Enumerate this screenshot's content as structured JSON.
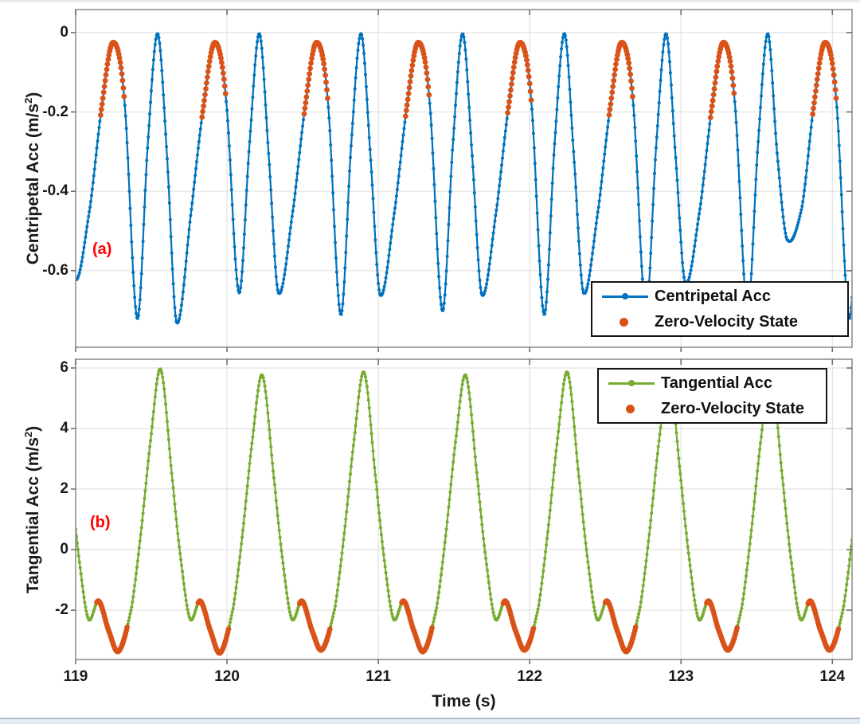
{
  "figure": {
    "background": "#ffffff",
    "axis_border_color": "#909090",
    "tick_color": "#6f6f6f",
    "grid_color": "#e2e2e2",
    "text_color": "#1a1a1a",
    "annotation_color": "#ff0000"
  },
  "xlabel": "Time (s)",
  "chart_data": [
    {
      "id": "centripetal",
      "type": "line",
      "annotation": "(a)",
      "ylabel": {
        "prefix": "Centripetal Acc (m/s",
        "sup": "2",
        "suffix": ")"
      },
      "xlim": [
        119,
        124.13
      ],
      "ylim": [
        -0.793,
        0.058
      ],
      "xticks": [
        119,
        120,
        121,
        122,
        123,
        124
      ],
      "xtick_labels": [
        "119",
        "120",
        "121",
        "122",
        "123",
        "124"
      ],
      "show_xtick_labels": false,
      "yticks": [
        0,
        -0.2,
        -0.4,
        -0.6
      ],
      "ytick_labels": [
        "0",
        "-0.2",
        "-0.4",
        "-0.6"
      ],
      "grid": true,
      "series": {
        "name": "Centripetal Acc",
        "color": "#0072bd",
        "line_width": 2.2,
        "marker": "dot",
        "marker_radius": 2,
        "sample_interval_s": 0.005,
        "anchor_offsets_s": [
          0,
          0.075,
          0.16,
          0.23,
          0.295,
          0.355,
          0.42,
          0.52,
          0.6
        ],
        "anchor_base_values": [
          -0.025,
          -0.17,
          "m1",
          -0.28,
          -0.003,
          -0.3,
          "m2",
          -0.44,
          -0.18
        ],
        "cycles": [
          {
            "tc": 118.575,
            "m1": -0.7,
            "m2": -0.62
          },
          {
            "tc": 119.247,
            "m1": -0.72,
            "m2": -0.73
          },
          {
            "tc": 119.919,
            "m1": -0.655,
            "m2": -0.655
          },
          {
            "tc": 120.591,
            "m1": -0.71,
            "m2": -0.66
          },
          {
            "tc": 121.263,
            "m1": -0.7,
            "m2": -0.66
          },
          {
            "tc": 121.935,
            "m1": -0.71,
            "m2": -0.655
          },
          {
            "tc": 122.607,
            "m1": -0.7,
            "m2": -0.63
          },
          {
            "tc": 123.279,
            "m1": -0.7,
            "m2": -0.52
          },
          {
            "tc": 123.951,
            "m1": -0.72,
            "m2": -0.7
          }
        ]
      },
      "zero_velocity": {
        "name": "Zero-Velocity State",
        "color": "#d95319",
        "marker_radius": 3.4,
        "rel_start": -0.085,
        "rel_end": 0.075
      },
      "legend": {
        "position": "southeast",
        "entries": [
          {
            "label": "Centripetal Acc",
            "marker": "line-dot",
            "color": "#0072bd"
          },
          {
            "label": "Zero-Velocity State",
            "marker": "dot",
            "color": "#d95319"
          }
        ]
      }
    },
    {
      "id": "tangential",
      "type": "line",
      "annotation": "(b)",
      "ylabel": {
        "prefix": "Tangential Acc (m/s",
        "sup": "2",
        "suffix": ")"
      },
      "xlim": [
        119,
        124.13
      ],
      "ylim": [
        -3.63,
        6.29
      ],
      "xticks": [
        119,
        120,
        121,
        122,
        123,
        124
      ],
      "xtick_labels": [
        "119",
        "120",
        "121",
        "122",
        "123",
        "124"
      ],
      "show_xtick_labels": true,
      "yticks": [
        6,
        4,
        2,
        0,
        -2
      ],
      "ytick_labels": [
        "6",
        "4",
        "2",
        "0",
        "-2"
      ],
      "grid": true,
      "series": {
        "name": "Tangential Acc",
        "color": "#77ac30",
        "line_width": 2.2,
        "marker": "dot",
        "marker_radius": 2.1,
        "sample_interval_s": 0.005,
        "anchor_offsets_s": [
          0,
          0.08,
          0.14,
          0.195,
          0.262,
          0.33,
          0.395,
          0.48,
          0.54,
          0.6
        ],
        "anchor_base_values": [
          "pk",
          2.2,
          -0.6,
          -2.3,
          -1.7,
          -2.7,
          "tr",
          -1.9,
          0.5,
          3.4
        ],
        "cycles": [
          {
            "tc": 118.89,
            "pk": 5.9,
            "tr": -3.35
          },
          {
            "tc": 119.562,
            "pk": 5.95,
            "tr": -3.4
          },
          {
            "tc": 120.234,
            "pk": 5.75,
            "tr": -3.3
          },
          {
            "tc": 120.906,
            "pk": 5.85,
            "tr": -3.35
          },
          {
            "tc": 121.578,
            "pk": 5.75,
            "tr": -3.3
          },
          {
            "tc": 122.25,
            "pk": 5.85,
            "tr": -3.35
          },
          {
            "tc": 122.922,
            "pk": 5.78,
            "tr": -3.3
          },
          {
            "tc": 123.594,
            "pk": 5.88,
            "tr": -3.3
          },
          {
            "tc": 124.266,
            "pk": 5.9,
            "tr": -3.3
          }
        ]
      },
      "zero_velocity": {
        "name": "Zero-Velocity State",
        "color": "#d95319",
        "marker_radius": 3.4,
        "rel_start": 0.245,
        "rel_end": 0.45
      },
      "legend": {
        "position": "northeast",
        "entries": [
          {
            "label": "Tangential Acc",
            "marker": "line-dot",
            "color": "#77ac30"
          },
          {
            "label": "Zero-Velocity State",
            "marker": "dot",
            "color": "#d95319"
          }
        ]
      }
    }
  ]
}
